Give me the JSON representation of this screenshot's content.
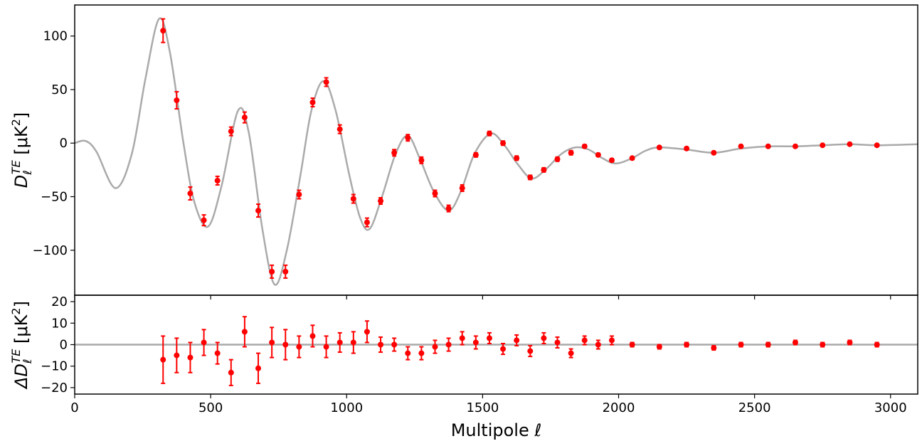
{
  "chart_data": [
    {
      "type": "errorbar",
      "ylabel": {
        "main": "D",
        "sub": "ℓ",
        "sup": "TE",
        "unit": " [μK",
        "unit_sup": "2",
        "close": "]"
      },
      "xlim": [
        0,
        3100
      ],
      "xticks": [
        0,
        500,
        1000,
        1500,
        2000,
        2500,
        3000
      ],
      "ylim": [
        -142,
        129
      ],
      "yticks": [
        {
          "value": -100,
          "label": "−100"
        },
        {
          "value": -50,
          "label": "−50"
        },
        0,
        50,
        100
      ],
      "series": [
        {
          "style": "line",
          "color": "#aaaaaa",
          "x": [
            0,
            40,
            80,
            150,
            210,
            260,
            310,
            350,
            400,
            440,
            490,
            540,
            600,
            640,
            690,
            735,
            780,
            830,
            870,
            915,
            960,
            1010,
            1050,
            1085,
            1130,
            1180,
            1225,
            1270,
            1320,
            1375,
            1420,
            1470,
            1530,
            1580,
            1630,
            1680,
            1730,
            1790,
            1840,
            1890,
            1940,
            1990,
            2050,
            2100,
            2150,
            2250,
            2350,
            2450,
            2550,
            2650,
            2750,
            2850,
            2950,
            3100
          ],
          "values": [
            0,
            2,
            -8,
            -42,
            -10,
            60,
            116,
            85,
            0,
            -55,
            -78,
            -40,
            30,
            10,
            -80,
            -132,
            -100,
            -30,
            30,
            58,
            30,
            -30,
            -70,
            -80,
            -50,
            -10,
            7,
            -15,
            -45,
            -63,
            -45,
            -10,
            9,
            -2,
            -20,
            -33,
            -25,
            -10,
            -4,
            -6,
            -14,
            -19,
            -14,
            -7,
            -4,
            -6,
            -9,
            -5,
            -3,
            -3,
            -2,
            -1,
            -2,
            -1
          ]
        },
        {
          "style": "errorbar",
          "color": "#ff0000",
          "x": [
            325,
            375,
            425,
            475,
            525,
            575,
            625,
            675,
            725,
            775,
            825,
            875,
            925,
            975,
            1025,
            1075,
            1125,
            1175,
            1225,
            1275,
            1325,
            1375,
            1425,
            1475,
            1525,
            1575,
            1625,
            1675,
            1725,
            1775,
            1825,
            1875,
            1925,
            1975,
            2050,
            2150,
            2250,
            2350,
            2450,
            2550,
            2650,
            2750,
            2850,
            2950
          ],
          "values": [
            105,
            40,
            -47,
            -72,
            -35,
            11,
            24,
            -63,
            -120,
            -120,
            -48,
            38,
            57,
            13,
            -52,
            -74,
            -54,
            -9,
            5,
            -16,
            -47,
            -61,
            -42,
            -11,
            9,
            0,
            -14,
            -32,
            -25,
            -15,
            -9,
            -3,
            -11,
            -16,
            -14,
            -4,
            -5,
            -9,
            -3,
            -3,
            -3,
            -2,
            -1,
            -2
          ],
          "errors": [
            11,
            8,
            6,
            5,
            4,
            4,
            5,
            6,
            6,
            6,
            4,
            4,
            4,
            4,
            4,
            4,
            3,
            3,
            3,
            3,
            3,
            3,
            3,
            2,
            2,
            2,
            2,
            2,
            2,
            2,
            2,
            1.5,
            1.5,
            1.5,
            1,
            1,
            1,
            1,
            1,
            1,
            1,
            1,
            1,
            1
          ]
        }
      ]
    },
    {
      "type": "errorbar",
      "ylabel": {
        "main": "ΔD",
        "sub": "ℓ",
        "sup": "TE",
        "unit": " [μK",
        "unit_sup": "2",
        "close": "]"
      },
      "xlabel": "Multipole ℓ",
      "xlim": [
        0,
        3100
      ],
      "xticks": [
        0,
        500,
        1000,
        1500,
        2000,
        2500,
        3000
      ],
      "ylim": [
        -23,
        23
      ],
      "yticks": [
        {
          "value": -20,
          "label": "−20"
        },
        {
          "value": -10,
          "label": "−10"
        },
        0,
        10,
        20
      ],
      "series": [
        {
          "style": "errorbar",
          "color": "#ff0000",
          "x": [
            325,
            375,
            425,
            475,
            525,
            575,
            625,
            675,
            725,
            775,
            825,
            875,
            925,
            975,
            1025,
            1075,
            1125,
            1175,
            1225,
            1275,
            1325,
            1375,
            1425,
            1475,
            1525,
            1575,
            1625,
            1675,
            1725,
            1775,
            1825,
            1875,
            1925,
            1975,
            2050,
            2150,
            2250,
            2350,
            2450,
            2550,
            2650,
            2750,
            2850,
            2950
          ],
          "values": [
            -7,
            -5,
            -6,
            1,
            -4,
            -13,
            6,
            -11,
            1,
            0,
            -1,
            4,
            -1,
            1,
            1,
            6,
            0,
            0,
            -4,
            -4,
            -1,
            0,
            3,
            1,
            3,
            -2,
            2,
            -3,
            3,
            1,
            -4,
            2,
            0,
            2,
            0,
            -1,
            0,
            -1.5,
            0,
            0,
            1,
            0,
            1,
            0
          ],
          "errors": [
            11,
            8,
            7,
            6,
            5,
            6,
            7,
            7,
            7,
            7,
            5,
            5,
            5,
            4.5,
            5,
            5,
            3.5,
            3,
            3,
            3,
            3,
            3,
            3,
            3,
            2.5,
            2.5,
            2.5,
            2.5,
            2.5,
            2.5,
            2,
            2,
            2,
            2,
            1,
            1,
            1,
            1,
            1,
            1,
            1,
            1,
            1,
            1
          ]
        }
      ]
    }
  ]
}
